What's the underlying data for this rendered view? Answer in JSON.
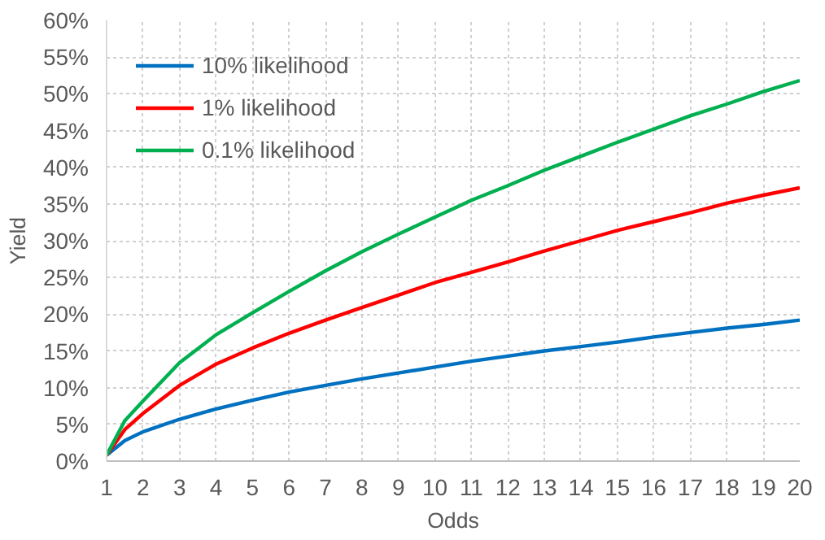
{
  "chart_data": {
    "type": "line",
    "xlabel": "Odds",
    "ylabel": "Yield",
    "x": [
      1,
      1.5,
      2,
      3,
      4,
      5,
      6,
      7,
      8,
      9,
      10,
      11,
      12,
      13,
      14,
      15,
      16,
      17,
      18,
      19,
      20
    ],
    "series": [
      {
        "name": "10% likelihood",
        "color": "#0070c0",
        "values": [
          0.8,
          2.8,
          4.0,
          5.7,
          7.1,
          8.3,
          9.4,
          10.3,
          11.2,
          12.0,
          12.8,
          13.6,
          14.3,
          15.0,
          15.6,
          16.2,
          16.9,
          17.5,
          18.1,
          18.6,
          19.2
        ]
      },
      {
        "name": "1% likelihood",
        "color": "#ff0000",
        "values": [
          0.8,
          4.3,
          6.5,
          10.3,
          13.2,
          15.4,
          17.4,
          19.2,
          20.9,
          22.6,
          24.3,
          25.7,
          27.1,
          28.6,
          30.0,
          31.4,
          32.6,
          33.8,
          35.1,
          36.2,
          37.2
        ]
      },
      {
        "name": "0.1% likelihood",
        "color": "#00b050",
        "values": [
          0.8,
          5.5,
          8.2,
          13.4,
          17.2,
          20.2,
          23.1,
          25.9,
          28.5,
          30.9,
          33.2,
          35.5,
          37.5,
          39.6,
          41.5,
          43.4,
          45.2,
          47.0,
          48.6,
          50.3,
          51.8
        ]
      }
    ],
    "xlim": [
      1,
      20
    ],
    "xticks": [
      1,
      2,
      3,
      4,
      5,
      6,
      7,
      8,
      9,
      10,
      11,
      12,
      13,
      14,
      15,
      16,
      17,
      18,
      19,
      20
    ],
    "ylim": [
      0,
      60
    ],
    "yticks": [
      {
        "value": 0,
        "label": "0%"
      },
      {
        "value": 5,
        "label": "5%"
      },
      {
        "value": 10,
        "label": "10%"
      },
      {
        "value": 15,
        "label": "15%"
      },
      {
        "value": 20,
        "label": "20%"
      },
      {
        "value": 25,
        "label": "25%"
      },
      {
        "value": 30,
        "label": "30%"
      },
      {
        "value": 35,
        "label": "35%"
      },
      {
        "value": 40,
        "label": "40%"
      },
      {
        "value": 45,
        "label": "45%"
      },
      {
        "value": 50,
        "label": "50%"
      },
      {
        "value": 55,
        "label": "55%"
      },
      {
        "value": 60,
        "label": "60%"
      }
    ],
    "grid": true,
    "legend": "top left",
    "marker": "none",
    "line_style": "solid"
  }
}
